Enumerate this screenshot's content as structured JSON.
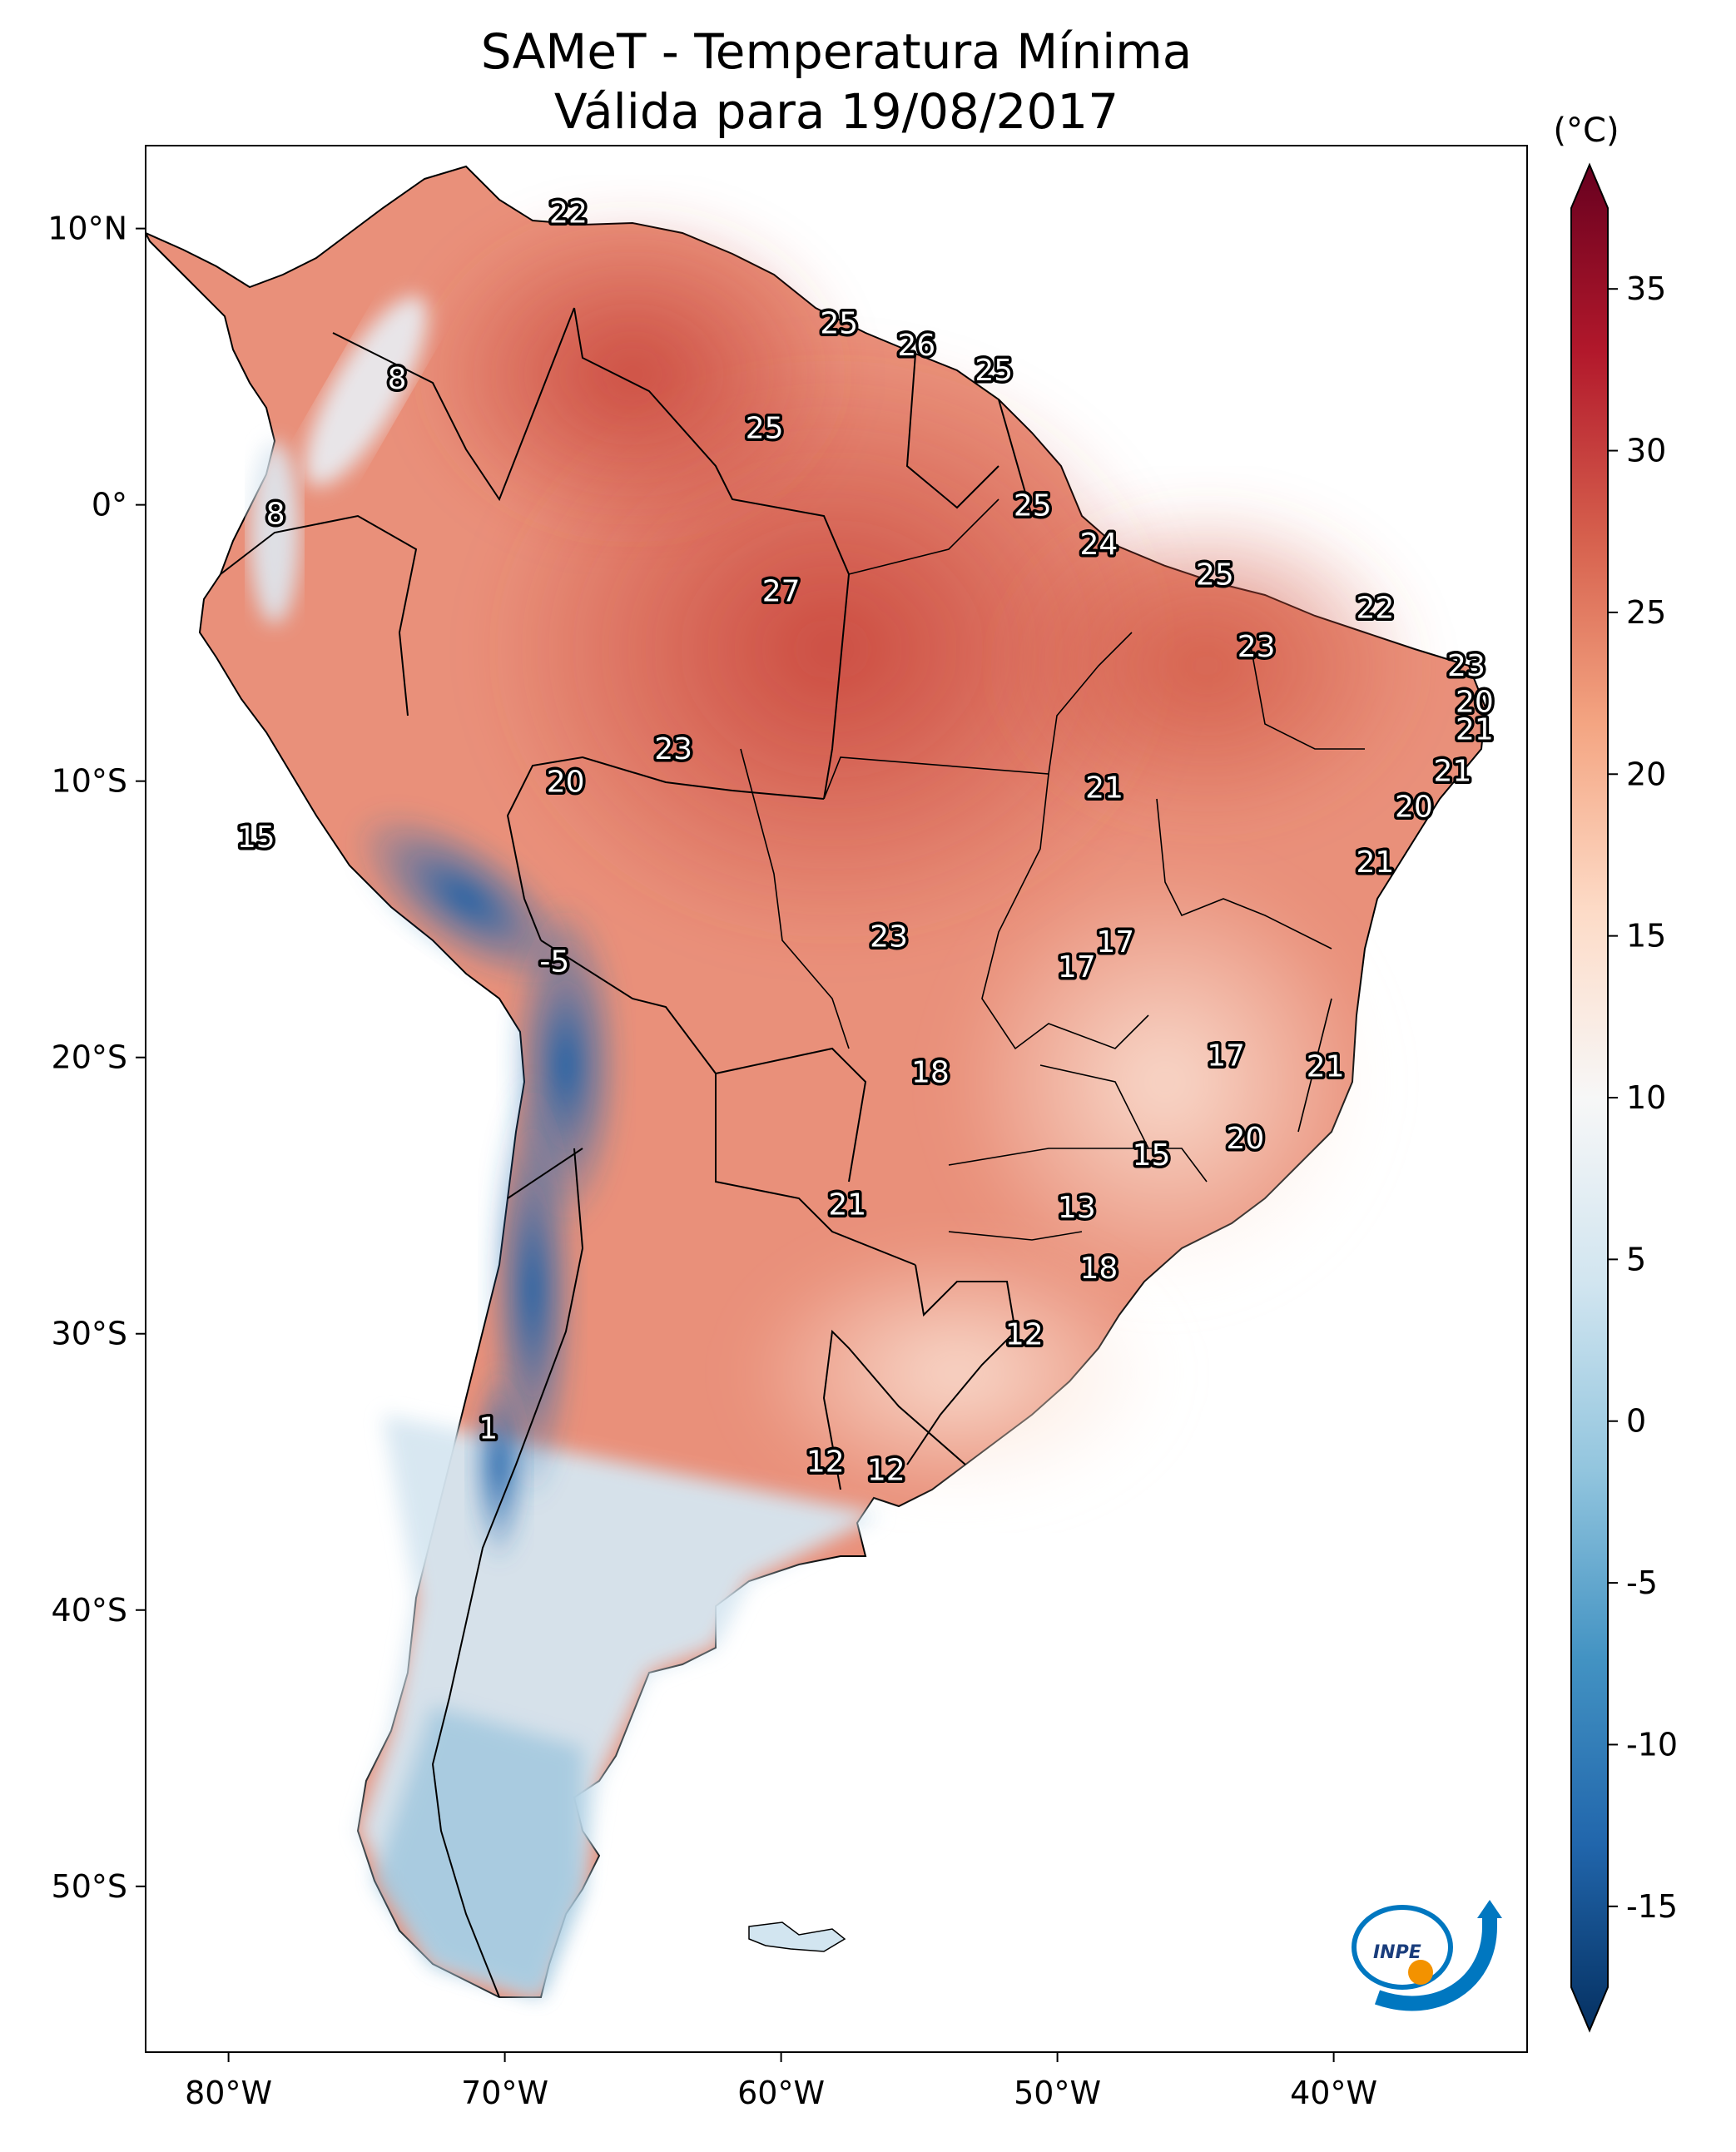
{
  "title": {
    "line1": "SAMeT - Temperatura Mínima",
    "line2": "Válida para 19/08/2017"
  },
  "map": {
    "lon_range": [
      -83,
      -33
    ],
    "lat_range": [
      -56,
      13
    ],
    "lon_ticks": [
      {
        "value": -80,
        "label": "80°W"
      },
      {
        "value": -70,
        "label": "70°W"
      },
      {
        "value": -60,
        "label": "60°W"
      },
      {
        "value": -50,
        "label": "50°W"
      },
      {
        "value": -40,
        "label": "40°W"
      }
    ],
    "lat_ticks": [
      {
        "value": 10,
        "label": "10°N"
      },
      {
        "value": 0,
        "label": "0°"
      },
      {
        "value": -10,
        "label": "10°S"
      },
      {
        "value": -20,
        "label": "20°S"
      },
      {
        "value": -30,
        "label": "30°S"
      },
      {
        "value": -40,
        "label": "40°S"
      },
      {
        "value": -50,
        "label": "50°S"
      }
    ],
    "station_values": [
      {
        "lon": -67.7,
        "lat": 10.6,
        "value": "22"
      },
      {
        "lon": -73.9,
        "lat": 4.6,
        "value": "8"
      },
      {
        "lon": -78.3,
        "lat": -0.3,
        "value": "8"
      },
      {
        "lon": -57.9,
        "lat": 6.6,
        "value": "25"
      },
      {
        "lon": -55.1,
        "lat": 5.8,
        "value": "26"
      },
      {
        "lon": -52.3,
        "lat": 4.9,
        "value": "25"
      },
      {
        "lon": -60.6,
        "lat": 2.8,
        "value": "25"
      },
      {
        "lon": -50.9,
        "lat": 0.0,
        "value": "25"
      },
      {
        "lon": -48.5,
        "lat": -1.4,
        "value": "24"
      },
      {
        "lon": -44.3,
        "lat": -2.5,
        "value": "25"
      },
      {
        "lon": -60.0,
        "lat": -3.1,
        "value": "27"
      },
      {
        "lon": -38.5,
        "lat": -3.7,
        "value": "22"
      },
      {
        "lon": -42.8,
        "lat": -5.1,
        "value": "23"
      },
      {
        "lon": -35.2,
        "lat": -5.8,
        "value": "23"
      },
      {
        "lon": -34.9,
        "lat": -7.1,
        "value": "20"
      },
      {
        "lon": -34.9,
        "lat": -8.1,
        "value": "21"
      },
      {
        "lon": -63.9,
        "lat": -8.8,
        "value": "23"
      },
      {
        "lon": -35.7,
        "lat": -9.6,
        "value": "21"
      },
      {
        "lon": -67.8,
        "lat": -10.0,
        "value": "20"
      },
      {
        "lon": -48.3,
        "lat": -10.2,
        "value": "21"
      },
      {
        "lon": -37.1,
        "lat": -10.9,
        "value": "20"
      },
      {
        "lon": -79.0,
        "lat": -12.0,
        "value": "15"
      },
      {
        "lon": -38.5,
        "lat": -12.9,
        "value": "21"
      },
      {
        "lon": -68.2,
        "lat": -16.5,
        "value": "-5"
      },
      {
        "lon": -56.1,
        "lat": -15.6,
        "value": "23"
      },
      {
        "lon": -47.9,
        "lat": -15.8,
        "value": "17"
      },
      {
        "lon": -49.3,
        "lat": -16.7,
        "value": "17"
      },
      {
        "lon": -54.6,
        "lat": -20.5,
        "value": "18"
      },
      {
        "lon": -43.9,
        "lat": -19.9,
        "value": "17"
      },
      {
        "lon": -40.3,
        "lat": -20.3,
        "value": "21"
      },
      {
        "lon": -43.2,
        "lat": -22.9,
        "value": "20"
      },
      {
        "lon": -46.6,
        "lat": -23.5,
        "value": "15"
      },
      {
        "lon": -57.6,
        "lat": -25.3,
        "value": "21"
      },
      {
        "lon": -49.3,
        "lat": -25.4,
        "value": "13"
      },
      {
        "lon": -48.5,
        "lat": -27.6,
        "value": "18"
      },
      {
        "lon": -51.2,
        "lat": -30.0,
        "value": "12"
      },
      {
        "lon": -70.6,
        "lat": -33.4,
        "value": "1"
      },
      {
        "lon": -58.4,
        "lat": -34.6,
        "value": "12"
      },
      {
        "lon": -56.2,
        "lat": -34.9,
        "value": "12"
      }
    ]
  },
  "colorbar": {
    "unit": "(°C)",
    "min": -17.5,
    "max": 37.5,
    "ticks": [
      "-15",
      "-10",
      "-5",
      "0",
      "5",
      "10",
      "15",
      "20",
      "25",
      "30",
      "35"
    ],
    "tick_values": [
      -15,
      -10,
      -5,
      0,
      5,
      10,
      15,
      20,
      25,
      30,
      35
    ],
    "colors": [
      "#053061",
      "#2166ac",
      "#4393c3",
      "#92c5de",
      "#d1e5f0",
      "#f7f7f7",
      "#fddbc7",
      "#f4a582",
      "#d6604d",
      "#b2182b",
      "#67001f"
    ]
  },
  "logo": {
    "text": "INPE",
    "colors": {
      "blue": "#0077c0",
      "orange": "#f39200"
    }
  }
}
